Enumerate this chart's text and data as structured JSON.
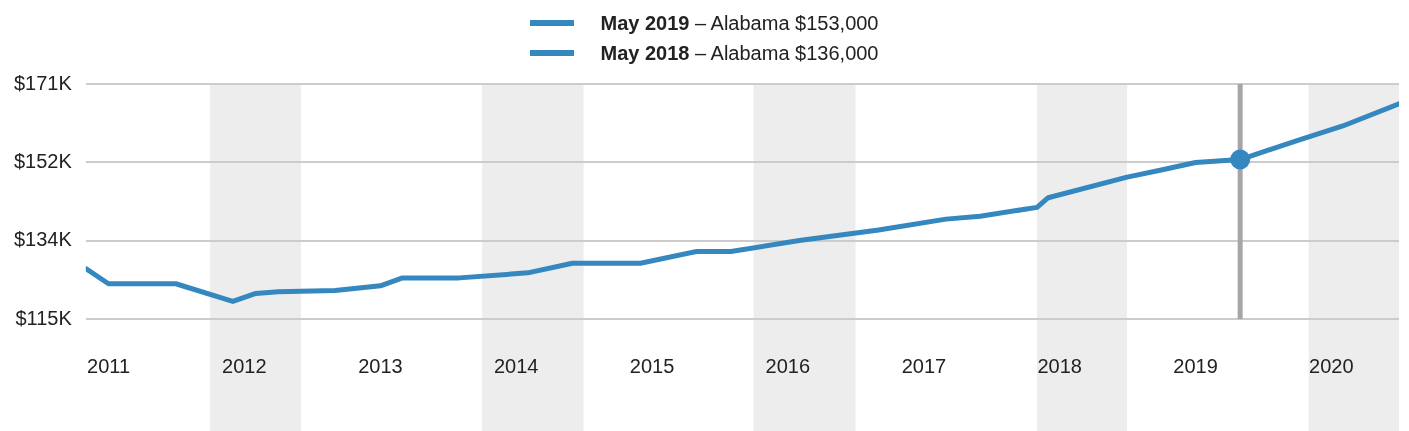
{
  "chart_data": {
    "type": "line",
    "x": [
      "2010-11",
      "2011-01",
      "2011-07",
      "2011-12",
      "2012-02",
      "2012-04",
      "2012-09",
      "2013-01",
      "2013-03",
      "2013-08",
      "2014-02",
      "2014-06",
      "2014-12",
      "2015-05",
      "2015-08",
      "2016-02",
      "2016-09",
      "2017-03",
      "2017-06",
      "2017-11",
      "2017-12",
      "2018-07",
      "2018-10",
      "2019-01",
      "2019-05",
      "2019-10",
      "2020-02",
      "2020-07"
    ],
    "series": [
      {
        "name": "May 2019 – Alabama $153,000",
        "color": "#3587bf",
        "values": [
          127000,
          123400,
          123400,
          119200,
          121100,
          121500,
          121800,
          122900,
          124800,
          124800,
          126000,
          128300,
          128300,
          131100,
          131100,
          133700,
          136200,
          138800,
          139500,
          141600,
          143900,
          148800,
          150500,
          152300,
          153000,
          157500,
          161000,
          166300
        ]
      },
      {
        "name": "May 2018 – Alabama $136,000",
        "color": "#3587bf",
        "values": [
          null,
          null,
          null,
          null,
          null,
          null,
          null,
          null,
          null,
          null,
          null,
          null,
          null,
          null,
          null,
          null,
          null,
          null,
          null,
          null,
          null,
          null,
          null,
          null,
          null,
          null,
          null,
          null
        ]
      },
      {
        "type": "scatter",
        "color": "#3587bf",
        "x": [
          "2019-05"
        ],
        "values": [
          153000
        ],
        "marker": "circle"
      }
    ],
    "xlim": [
      "2010-11",
      "2020-07"
    ],
    "xticks": [
      "2011",
      "2012",
      "2013",
      "2014",
      "2015",
      "2016",
      "2017",
      "2018",
      "2019",
      "2020"
    ],
    "ylim": [
      115000,
      171000
    ],
    "yticks": [
      {
        "value": 115000,
        "label": "$115K"
      },
      {
        "value": 133667,
        "label": "$134K"
      },
      {
        "value": 152333,
        "label": "$152K"
      },
      {
        "value": 171000,
        "label": "$171K"
      }
    ],
    "grid": "y",
    "legend": "top",
    "marker": "none",
    "line_style": "solid",
    "ref_lines": [
      {
        "axis": "x",
        "value": "2019-05",
        "color": "#a6a6a8"
      }
    ],
    "bands": [
      {
        "axis": "x",
        "from": "2011-10",
        "to": "2012-06",
        "color": "#ededed"
      },
      {
        "axis": "x",
        "from": "2013-10",
        "to": "2014-07",
        "color": "#ededed"
      },
      {
        "axis": "x",
        "from": "2015-10",
        "to": "2016-07",
        "color": "#ededed"
      },
      {
        "axis": "x",
        "from": "2017-11",
        "to": "2018-07",
        "color": "#ededed"
      },
      {
        "axis": "x",
        "from": "2019-11",
        "to": "2020-07",
        "color": "#ededed"
      }
    ]
  }
}
